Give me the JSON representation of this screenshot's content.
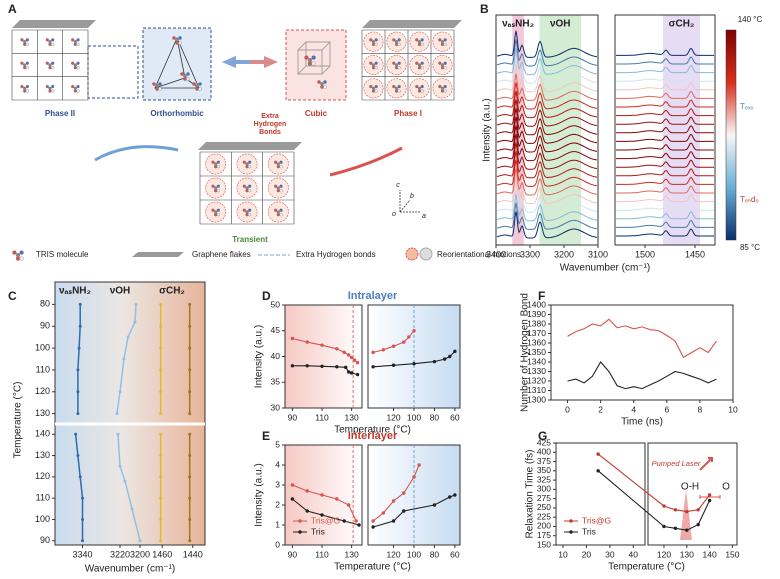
{
  "panel_labels": [
    "A",
    "B",
    "C",
    "D",
    "E",
    "F",
    "G"
  ],
  "diagram": {
    "phase_ii": "Phase II",
    "orthorhombic": "Orthorhombic",
    "cubic": "Cubic",
    "phase_i": "Phase I",
    "extra_bonds": [
      "Extra",
      "Hydrogen",
      "Bonds"
    ],
    "transient": "Transient",
    "axes": [
      "c",
      "b",
      "o",
      "a"
    ],
    "legend": [
      "TRIS molecule",
      "Graphene flakes",
      "Extra Hydrogen bonds",
      "Reorientational motions"
    ]
  },
  "chart_data": [
    {
      "type": "spectra",
      "ylabel": "Intensity (a.u.)",
      "xlabel": "Wavenumber (cm⁻¹)",
      "segments": [
        {
          "xlim": [
            3400,
            3100
          ],
          "xticks": [
            3400,
            3300,
            3200,
            3100
          ]
        },
        {
          "xlim": [
            1530,
            1430
          ],
          "xticks": [
            1500,
            1450
          ]
        }
      ],
      "bands": [
        {
          "label": "νₐₛNH₂",
          "range": [
            3352,
            3318
          ],
          "segment": 0,
          "color": "#f3c9d9"
        },
        {
          "label": "νOH",
          "range": [
            3272,
            3150
          ],
          "segment": 0,
          "color": "#d4ecd4"
        },
        {
          "label": "σCH₂",
          "range": [
            1482,
            1445
          ],
          "segment": 1,
          "color": "#e6dcf3"
        }
      ],
      "colorbar": {
        "top": "140 °C",
        "bottom": "85 °C",
        "colors": [
          "#7f0000",
          "#d7301f",
          "#f7f7f7",
          "#6baed6",
          "#08306b"
        ],
        "marks": [
          "Tₑₓₒ",
          "Tₑₙdₒ"
        ]
      }
    },
    {
      "type": "line",
      "ylabel": "Temperature (°C)",
      "xlabel": "Wavenumber (cm⁻¹)",
      "bands": [
        "νₐₛNH₂",
        "νOH",
        "σCH₂"
      ],
      "panels": [
        {
          "ylim": [
            78,
            132
          ],
          "yticks": [
            80,
            90,
            100,
            110,
            120,
            130
          ]
        },
        {
          "ylim": [
            142,
            88
          ],
          "yticks": [
            140,
            130,
            120,
            110,
            100,
            90
          ]
        }
      ],
      "segments": [
        {
          "xlim": [
            3352,
            3328
          ],
          "xticks": [
            3340
          ]
        },
        {
          "xlim": [
            3230,
            3190
          ],
          "xticks": [
            3220,
            3200
          ]
        },
        {
          "xlim": [
            1468,
            1432
          ],
          "xticks": [
            1460,
            1440
          ]
        }
      ],
      "series": [
        {
          "panel": 0,
          "segment": 0,
          "color": "#2b6cb0",
          "x": [
            3341,
            3341,
            3341.5,
            3342,
            3342,
            3342
          ],
          "values": [
            80,
            90,
            100,
            110,
            120,
            130
          ]
        },
        {
          "panel": 1,
          "segment": 0,
          "color": "#2b6cb0",
          "x": [
            3343,
            3342,
            3341,
            3340,
            3340,
            3340
          ],
          "values": [
            140,
            130,
            120,
            110,
            100,
            90
          ]
        },
        {
          "panel": 0,
          "segment": 1,
          "color": "#8fc1e8",
          "x": [
            3204,
            3205,
            3212,
            3216,
            3220,
            3223
          ],
          "values": [
            80,
            88,
            95,
            105,
            120,
            130
          ]
        },
        {
          "panel": 1,
          "segment": 1,
          "color": "#8fc1e8",
          "x": [
            3222,
            3220,
            3215,
            3208,
            3200
          ],
          "values": [
            140,
            125,
            118,
            105,
            90
          ]
        },
        {
          "panel": 0,
          "segment": 2,
          "color": "#e8b830",
          "x": [
            1461,
            1461,
            1461,
            1461,
            1461,
            1461
          ],
          "values": [
            80,
            90,
            100,
            110,
            120,
            130
          ]
        },
        {
          "panel": 0,
          "segment": 2,
          "color": "#9c7a1a",
          "x": [
            1442,
            1442,
            1442,
            1442,
            1442,
            1442
          ],
          "values": [
            80,
            90,
            100,
            110,
            120,
            130
          ]
        },
        {
          "panel": 1,
          "segment": 2,
          "color": "#e8b830",
          "x": [
            1461,
            1461,
            1461,
            1461,
            1461,
            1461
          ],
          "values": [
            140,
            130,
            120,
            110,
            100,
            90
          ]
        },
        {
          "panel": 1,
          "segment": 2,
          "color": "#9c7a1a",
          "x": [
            1442,
            1442,
            1442,
            1442,
            1442,
            1442
          ],
          "values": [
            140,
            130,
            120,
            110,
            100,
            90
          ]
        }
      ]
    },
    {
      "type": "line",
      "title": "Intralayer",
      "title_color": "#4a7fc1",
      "ylabel": "Intensity (a.u.)",
      "xlabel": "Temperature (°C)",
      "markers": true,
      "ylim": [
        30,
        50
      ],
      "yticks": [
        30,
        35,
        40,
        45,
        50
      ],
      "segments": [
        {
          "xlim": [
            85,
            137
          ],
          "xticks": [
            90,
            110,
            130
          ]
        },
        {
          "xlim": [
            145,
            55
          ],
          "xticks": [
            120,
            100,
            80,
            60
          ]
        }
      ],
      "series": [
        {
          "color": "#d9534f",
          "parts": [
            {
              "x": [
                90,
                100,
                110,
                120,
                125,
                128,
                130,
                132,
                134
              ],
              "values": [
                43.5,
                42.8,
                42.2,
                41.5,
                40.8,
                40.3,
                39.8,
                39.3,
                38.8
              ]
            },
            {
              "x": [
                140,
                130,
                120,
                110,
                105,
                100
              ],
              "values": [
                40.8,
                41.3,
                42,
                42.8,
                43.8,
                45
              ]
            }
          ]
        },
        {
          "color": "#222222",
          "parts": [
            {
              "x": [
                90,
                100,
                110,
                120,
                126,
                128,
                130,
                134
              ],
              "values": [
                38.2,
                38.2,
                38.1,
                38,
                37.9,
                37,
                36.8,
                36.5
              ]
            },
            {
              "x": [
                140,
                120,
                100,
                80,
                70,
                65,
                60
              ],
              "values": [
                38,
                38.3,
                38.6,
                39,
                39.5,
                40,
                41
              ]
            }
          ]
        }
      ],
      "guides": [
        {
          "segment": 0,
          "x": 131,
          "color": "#e07070"
        },
        {
          "segment": 1,
          "x": 100,
          "color": "#6fa0d8"
        }
      ]
    },
    {
      "type": "line",
      "title": "Interlayer",
      "title_color": "#c0392b",
      "ylabel": "Intensity (a.u.)",
      "xlabel": "Temperature (°C)",
      "markers": true,
      "legend_position": "lower left",
      "ylim": [
        0,
        5
      ],
      "yticks": [
        0,
        1,
        2,
        3,
        4,
        5
      ],
      "segments": [
        {
          "xlim": [
            85,
            137
          ],
          "xticks": [
            90,
            110,
            130
          ]
        },
        {
          "xlim": [
            145,
            55
          ],
          "xticks": [
            120,
            100,
            80,
            60
          ]
        }
      ],
      "series": [
        {
          "name": "Tris@G",
          "color": "#d9534f",
          "parts": [
            {
              "x": [
                90,
                100,
                110,
                120,
                128,
                133
              ],
              "values": [
                3,
                2.7,
                2.5,
                2.3,
                2,
                1.2
              ]
            },
            {
              "x": [
                140,
                130,
                120,
                110,
                100,
                95
              ],
              "values": [
                1.2,
                1.6,
                2.2,
                2.6,
                3.4,
                4
              ]
            }
          ]
        },
        {
          "name": "Tris",
          "color": "#222222",
          "parts": [
            {
              "x": [
                90,
                100,
                110,
                125,
                135
              ],
              "values": [
                2.3,
                1.7,
                1.5,
                1.2,
                1
              ]
            },
            {
              "x": [
                140,
                120,
                110,
                80,
                65,
                60
              ],
              "values": [
                0.9,
                1.2,
                1.7,
                2,
                2.4,
                2.5
              ]
            }
          ]
        }
      ],
      "guides": [
        {
          "segment": 0,
          "x": 131,
          "color": "#e07070"
        },
        {
          "segment": 1,
          "x": 100,
          "color": "#6fa0d8"
        }
      ]
    },
    {
      "type": "line",
      "ylabel": "Number of Hydrogen Bond",
      "xlabel": "Time (ns)",
      "markers": false,
      "xlim": [
        -1,
        10
      ],
      "xticks": [
        0,
        2,
        4,
        6,
        8,
        10
      ],
      "ylim": [
        1300,
        1400
      ],
      "yticks": [
        1300,
        1310,
        1320,
        1330,
        1340,
        1350,
        1360,
        1370,
        1380,
        1390,
        1400
      ],
      "series": [
        {
          "color": "#d9534f",
          "x": [
            0,
            0.5,
            1,
            1.5,
            2,
            2.5,
            3,
            3.5,
            4,
            4.5,
            5,
            5.5,
            6,
            6.5,
            7,
            7.5,
            8,
            8.5,
            9
          ],
          "values": [
            1367,
            1372,
            1375,
            1380,
            1378,
            1385,
            1376,
            1378,
            1375,
            1377,
            1374,
            1373,
            1368,
            1362,
            1345,
            1350,
            1355,
            1350,
            1362
          ]
        },
        {
          "color": "#222222",
          "x": [
            0,
            0.5,
            1,
            1.5,
            2,
            2.5,
            3,
            3.5,
            4,
            4.5,
            5,
            5.5,
            6,
            6.5,
            7,
            7.5,
            8,
            8.5,
            9
          ],
          "values": [
            1320,
            1322,
            1318,
            1325,
            1340,
            1330,
            1315,
            1312,
            1314,
            1312,
            1316,
            1320,
            1325,
            1330,
            1328,
            1325,
            1322,
            1318,
            1322
          ]
        }
      ]
    },
    {
      "type": "line",
      "ylabel": "Relaxation Time (fs)",
      "xlabel": "Temperature (°C)",
      "markers": true,
      "legend_position": "lower left",
      "ylim": [
        150,
        425
      ],
      "yticks": [
        150,
        175,
        200,
        225,
        250,
        275,
        300,
        325,
        350,
        375,
        400,
        425
      ],
      "segments": [
        {
          "xlim": [
            7,
            45
          ],
          "xticks": [
            10,
            20,
            30,
            40
          ]
        },
        {
          "xlim": [
            113,
            152
          ],
          "xticks": [
            120,
            130,
            140,
            150
          ]
        }
      ],
      "series": [
        {
          "name": "Tris@G",
          "color": "#c0392b",
          "x": [
            25,
            120,
            125,
            130,
            135,
            140
          ],
          "values": [
            395,
            255,
            245,
            240,
            245,
            285
          ]
        },
        {
          "name": "Tris",
          "color": "#222222",
          "x": [
            25,
            120,
            125,
            130,
            135,
            140
          ],
          "values": [
            350,
            200,
            195,
            190,
            205,
            270
          ]
        }
      ],
      "annotations": [
        "Pumped Laser",
        "O-H",
        "O"
      ]
    }
  ]
}
